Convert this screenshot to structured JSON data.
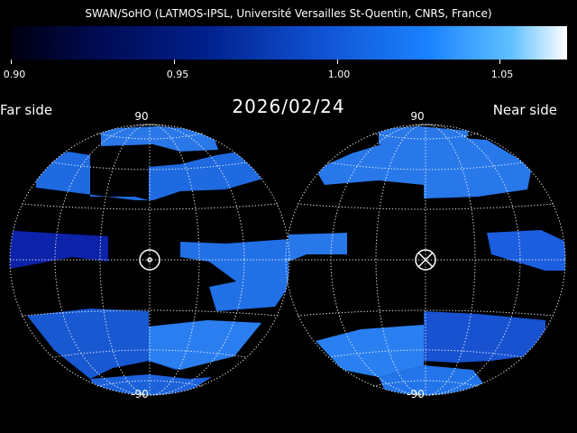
{
  "header": {
    "title": "SWAN/SoHO (LATMOS-IPSL, Université Versailles St-Quentin, CNRS, France)"
  },
  "colorbar": {
    "ticks": [
      "0.90",
      "0.95",
      "1.00",
      "1.05"
    ]
  },
  "labels": {
    "far_side": "Far side",
    "near_side": "Near side",
    "date": "2026/02/24",
    "left_top_lat": "90",
    "left_bottom_lat": "-90",
    "right_top_lat": "90",
    "right_bottom_lat": "-90"
  },
  "colors": {
    "background": "#000000",
    "grid": "#ffffff",
    "dark_band": "#0a1a9a",
    "mid_band": "#1a5ad8",
    "bright_band": "#2a80f0"
  }
}
